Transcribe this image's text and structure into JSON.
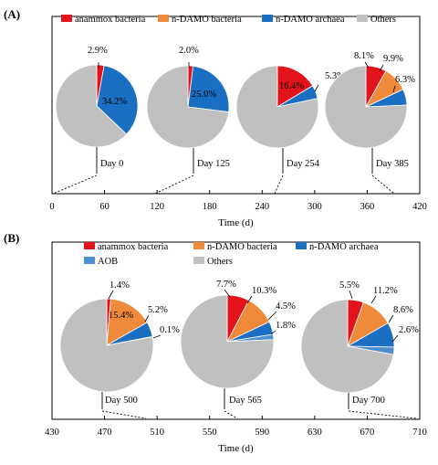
{
  "chart_data": [
    {
      "type": "pie",
      "panel": "(A)",
      "xlabel": "Time (d)",
      "xlim": [
        0,
        420
      ],
      "xticks": [
        0,
        60,
        120,
        180,
        240,
        300,
        360,
        420
      ],
      "categories": [
        "anammox bacteria",
        "n-DAMO bacteria",
        "n-DAMO archaea",
        "Others"
      ],
      "colors": [
        "#e3131b",
        "#ef8a3b",
        "#1b6fc2",
        "#c0c0c0"
      ],
      "pies": [
        {
          "day": 0,
          "label": "Day 0",
          "values": [
            2.9,
            0,
            34.2,
            62.9
          ],
          "labels": [
            "2.9%",
            "",
            "34.2%",
            ""
          ]
        },
        {
          "day": 125,
          "label": "Day 125",
          "values": [
            2.0,
            0,
            25.0,
            73.0
          ],
          "labels": [
            "2.0%",
            "",
            "25.0%",
            ""
          ]
        },
        {
          "day": 254,
          "label": "Day 254",
          "values": [
            16.4,
            0,
            5.3,
            78.3
          ],
          "labels": [
            "16.4%",
            "",
            "5.3%",
            ""
          ]
        },
        {
          "day": 385,
          "label": "Day 385",
          "values": [
            8.1,
            9.9,
            6.3,
            75.7
          ],
          "labels": [
            "8.1%",
            "9.9%",
            "6.3%",
            ""
          ]
        }
      ]
    },
    {
      "type": "pie",
      "panel": "(B)",
      "xlabel": "Time (d)",
      "xlim": [
        430,
        710
      ],
      "xticks": [
        430,
        470,
        510,
        550,
        590,
        630,
        670,
        710
      ],
      "categories": [
        "anammox bacteria",
        "n-DAMO bacteria",
        "n-DAMO archaea",
        "AOB",
        "Others"
      ],
      "colors": [
        "#e3131b",
        "#ef8a3b",
        "#1b6fc2",
        "#4d8fcf",
        "#c0c0c0"
      ],
      "pies": [
        {
          "day": 500,
          "label": "Day 500",
          "values": [
            1.4,
            15.4,
            5.2,
            0.1,
            77.9
          ],
          "labels": [
            "1.4%",
            "15.4%",
            "5.2%",
            "0.1%",
            ""
          ]
        },
        {
          "day": 565,
          "label": "Day 565",
          "values": [
            7.7,
            10.3,
            4.5,
            1.8,
            75.7
          ],
          "labels": [
            "7.7%",
            "10.3%",
            "4.5%",
            "1.8%",
            ""
          ]
        },
        {
          "day": 700,
          "label": "Day 700",
          "values": [
            5.5,
            11.2,
            8.6,
            2.6,
            72.1
          ],
          "labels": [
            "5.5%",
            "11.2%",
            "8.6%",
            "2.6%",
            ""
          ]
        }
      ]
    }
  ]
}
